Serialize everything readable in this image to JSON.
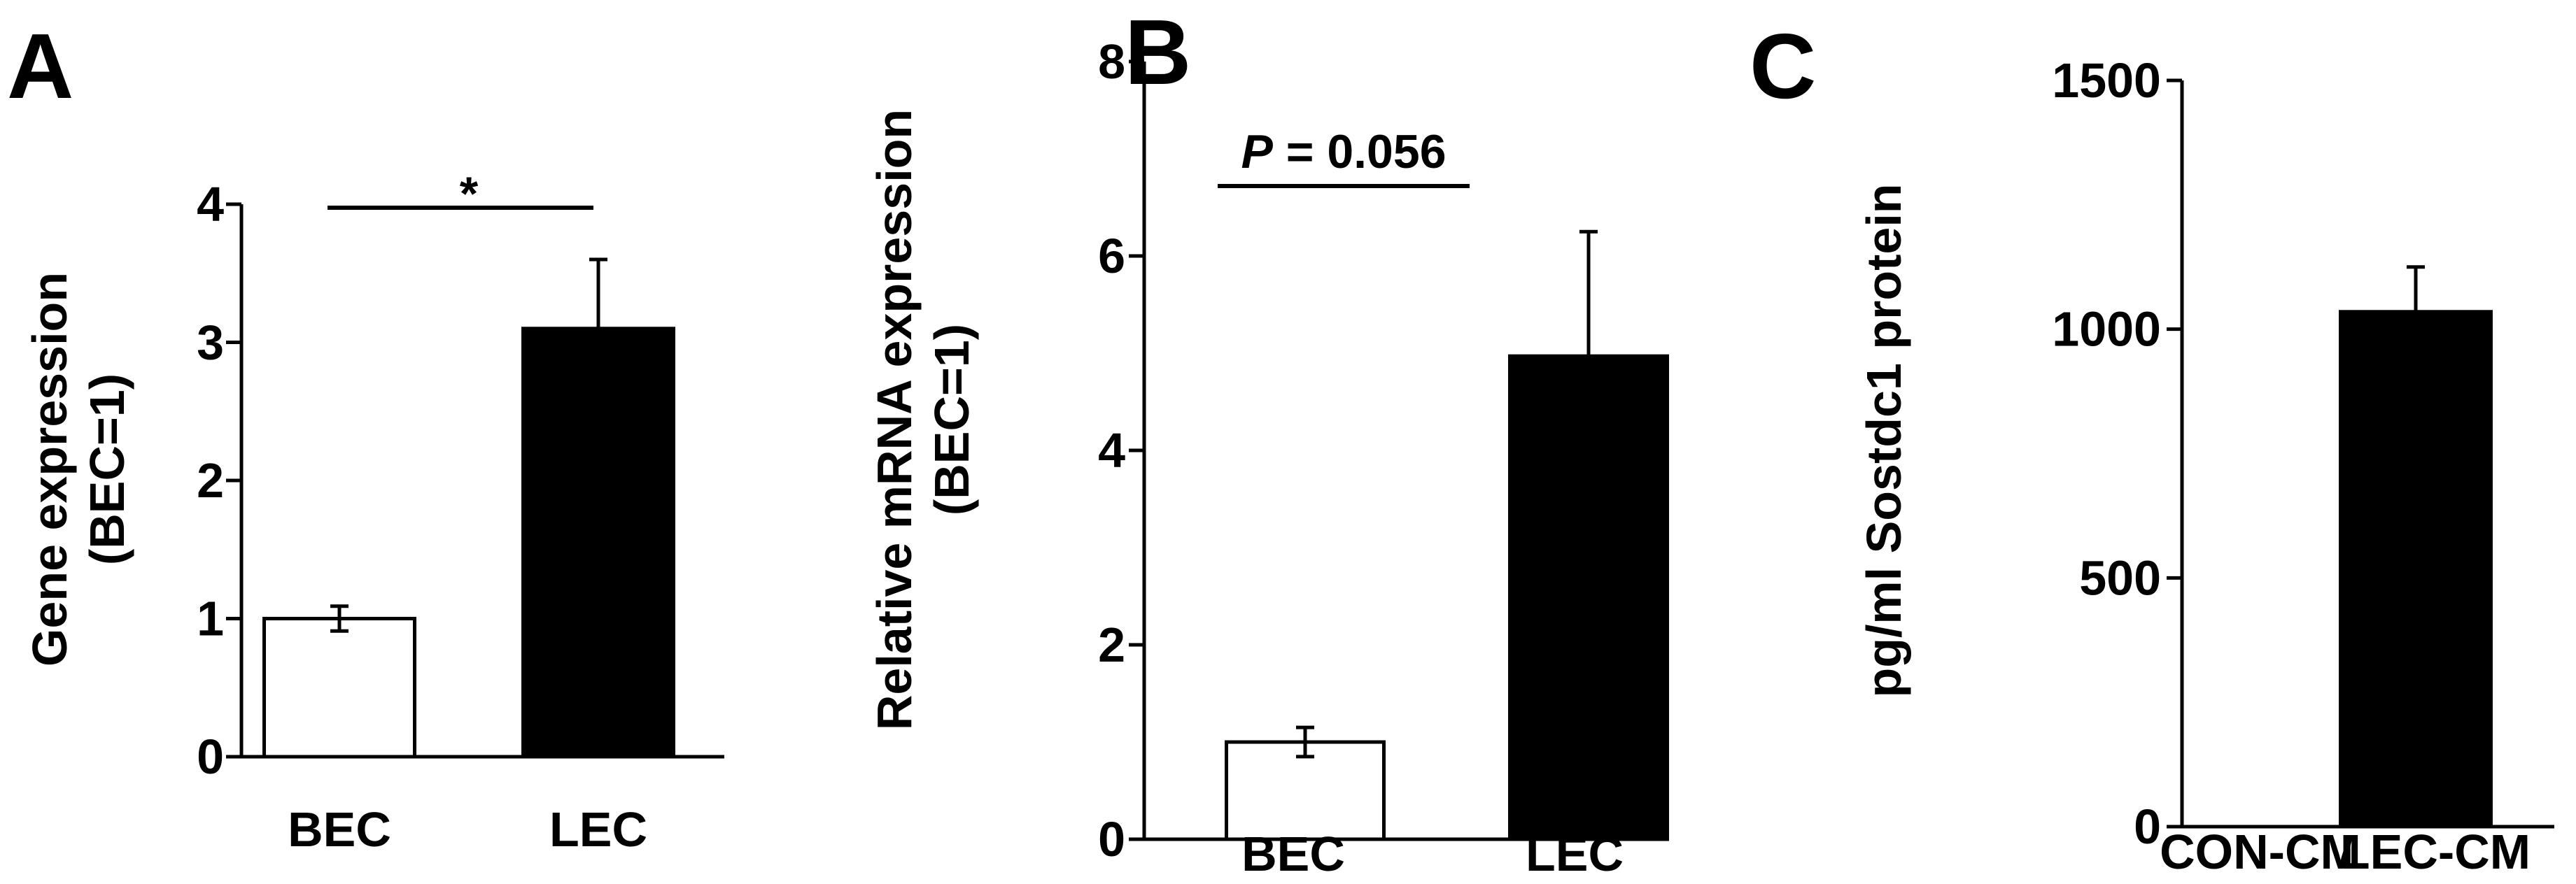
{
  "chart_data": [
    {
      "type": "bar",
      "panel_label": "A",
      "categories": [
        "BEC",
        "LEC"
      ],
      "values": [
        1.0,
        3.1
      ],
      "errors": [
        0.09,
        0.5
      ],
      "bar_colors": [
        "#ffffff",
        "#000000"
      ],
      "ylabel": [
        "Gene expression",
        "(BEC=1)"
      ],
      "ylim": [
        0,
        4
      ],
      "yticks": [
        0,
        1,
        2,
        3,
        4
      ],
      "annotation": {
        "text": "*",
        "italic": false
      }
    },
    {
      "type": "bar",
      "panel_label": "B",
      "categories": [
        "BEC",
        "LEC"
      ],
      "values": [
        1.0,
        4.97
      ],
      "errors": [
        0.15,
        1.28
      ],
      "bar_colors": [
        "#ffffff",
        "#000000"
      ],
      "ylabel": [
        "Relative mRNA expression",
        "(BEC=1)"
      ],
      "ylim": [
        0,
        8
      ],
      "yticks": [
        0,
        2,
        4,
        6,
        8
      ],
      "annotation": {
        "text_italic": "P",
        "text_rest": " = 0.056"
      }
    },
    {
      "type": "bar",
      "panel_label": "C",
      "categories": [
        "CON-CM",
        "LEC-CM"
      ],
      "values": [
        0,
        1035
      ],
      "errors": [
        0,
        90
      ],
      "bar_colors": [
        "#ffffff",
        "#000000"
      ],
      "ylabel": [
        "pg/ml Sostdc1 protein"
      ],
      "ylim": [
        0,
        1500
      ],
      "yticks": [
        0,
        500,
        1000,
        1500
      ]
    }
  ]
}
